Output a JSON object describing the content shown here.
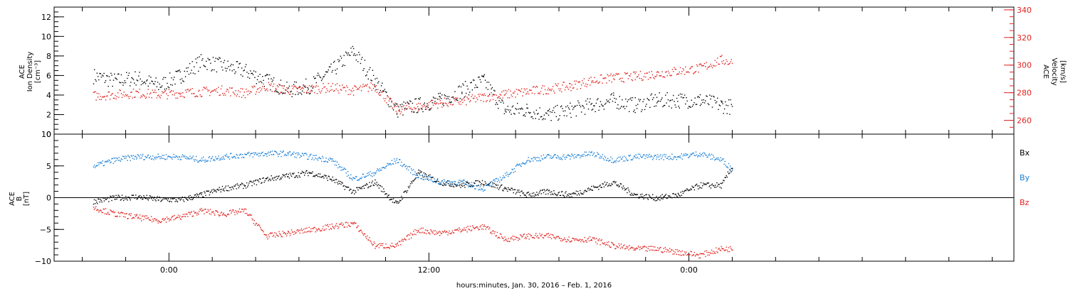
{
  "chart_data": [
    {
      "type": "scatter",
      "panel": "plasma",
      "ylabel_left": [
        "ACE",
        "Ion Density",
        "[cm⁻³]"
      ],
      "ylabel_right": [
        "ACE",
        "Velocity",
        "[km/s]"
      ],
      "ylim_left": [
        0,
        13
      ],
      "yticks_left": [
        0,
        2,
        4,
        6,
        8,
        10,
        12
      ],
      "ylim_right": [
        250,
        342
      ],
      "yticks_right": [
        260,
        280,
        300,
        320,
        340
      ],
      "series": [
        {
          "axis": "left",
          "color": "#000000",
          "x_hours": [
            -3.5,
            -2.5,
            -1.5,
            -0.5,
            0.5,
            1.5,
            2.5,
            3.5,
            4.5,
            5.5,
            6.5,
            7.5,
            8.5,
            9.5,
            10.5,
            11.5,
            12.5,
            13.5,
            14.5,
            15.5,
            16.5,
            17.5,
            18.5,
            19.5,
            20.5,
            21.5,
            22.5,
            23.5,
            24.5,
            25.5,
            26.0
          ],
          "values": [
            6.0,
            5.5,
            5.8,
            5.0,
            6.0,
            7.5,
            7.0,
            6.5,
            5.5,
            4.5,
            5.0,
            6.5,
            8.5,
            5.5,
            2.5,
            3.0,
            3.5,
            4.5,
            5.5,
            2.5,
            2.5,
            2.0,
            2.5,
            3.0,
            3.5,
            3.0,
            3.5,
            3.5,
            3.5,
            3.0,
            2.8
          ]
        },
        {
          "axis": "right",
          "color": "#e0231f",
          "x_hours": [
            -3.5,
            -2.5,
            -1.5,
            -0.5,
            0.5,
            1.5,
            2.5,
            3.5,
            4.5,
            5.5,
            6.5,
            7.5,
            8.5,
            9.5,
            10.5,
            11.5,
            12.5,
            13.5,
            14.5,
            15.5,
            16.5,
            17.5,
            18.5,
            19.5,
            20.5,
            21.5,
            22.5,
            23.5,
            24.5,
            25.5,
            26.0
          ],
          "values": [
            278,
            279,
            280,
            279,
            280,
            281,
            282,
            280,
            285,
            282,
            283,
            284,
            282,
            285,
            268,
            270,
            273,
            274,
            277,
            279,
            281,
            283,
            285,
            289,
            291,
            292,
            294,
            296,
            298,
            304,
            302
          ]
        }
      ]
    },
    {
      "type": "scatter",
      "panel": "magnetic-field",
      "ylabel": [
        "ACE",
        "B",
        "[nT]"
      ],
      "ylim": [
        -10,
        10
      ],
      "yticks": [
        -10,
        -5,
        0,
        5,
        10
      ],
      "zero_line": true,
      "series": [
        {
          "name": "Bx",
          "color": "#000000",
          "x_hours": [
            -3.5,
            -2.5,
            -1.5,
            -0.5,
            0.5,
            1.5,
            2.5,
            3.5,
            4.5,
            5.5,
            6.5,
            7.5,
            8.5,
            9.5,
            10.5,
            11.5,
            12.5,
            13.5,
            14.5,
            15.5,
            16.5,
            17.5,
            18.5,
            19.5,
            20.5,
            21.5,
            22.5,
            23.5,
            24.5,
            25.5,
            26.0
          ],
          "values": [
            -0.5,
            0,
            0.2,
            -0.2,
            -0.3,
            0.5,
            1.5,
            2.0,
            3.0,
            3.5,
            4.0,
            3.0,
            1.0,
            2.5,
            -1.0,
            4.0,
            2.5,
            2.0,
            2.5,
            1.5,
            0.5,
            1.0,
            0.5,
            1.5,
            2.5,
            0.5,
            0,
            0.5,
            2.0,
            2.0,
            5.0
          ]
        },
        {
          "name": "By",
          "color": "#1a7fd6",
          "x_hours": [
            -3.5,
            -2.5,
            -1.5,
            -0.5,
            0.5,
            1.5,
            2.5,
            3.5,
            4.5,
            5.5,
            6.5,
            7.5,
            8.5,
            9.5,
            10.5,
            11.5,
            12.5,
            13.5,
            14.5,
            15.5,
            16.5,
            17.5,
            18.5,
            19.5,
            20.5,
            21.5,
            22.5,
            23.5,
            24.5,
            25.5,
            26.0
          ],
          "values": [
            5.0,
            6.0,
            6.5,
            6.5,
            6.5,
            6.0,
            6.5,
            6.8,
            7.0,
            7.0,
            6.5,
            6.0,
            3.0,
            4.0,
            6.0,
            3.5,
            2.5,
            2.5,
            1.5,
            3.5,
            6.0,
            6.5,
            6.5,
            7.0,
            6.0,
            6.5,
            6.5,
            6.5,
            7.0,
            6.0,
            4.5
          ]
        },
        {
          "name": "Bz",
          "color": "#e0231f",
          "x_hours": [
            -3.5,
            -2.5,
            -1.5,
            -0.5,
            0.5,
            1.5,
            2.5,
            3.5,
            4.5,
            5.5,
            6.5,
            7.5,
            8.5,
            9.5,
            10.5,
            11.5,
            12.5,
            13.5,
            14.5,
            15.5,
            16.5,
            17.5,
            18.5,
            19.5,
            20.5,
            21.5,
            22.5,
            23.5,
            24.5,
            25.5,
            26.0
          ],
          "values": [
            -1.5,
            -2.5,
            -3.0,
            -3.5,
            -3.0,
            -2.0,
            -2.5,
            -2.0,
            -6.0,
            -5.5,
            -5.0,
            -4.5,
            -4.0,
            -7.5,
            -7.5,
            -5.0,
            -5.5,
            -5.0,
            -4.5,
            -6.5,
            -6.0,
            -6.0,
            -6.5,
            -6.5,
            -7.5,
            -8.0,
            -8.0,
            -8.5,
            -9.0,
            -8.0,
            -8.0
          ]
        }
      ]
    }
  ],
  "x_axis": {
    "xlim_hours": [
      -5.3,
      39.0
    ],
    "major_ticks": [
      0,
      12,
      24
    ],
    "tick_labels": [
      "0:00",
      "12:00",
      "0:00"
    ],
    "minor_tick_step_hours": 2,
    "label": "hours:minutes, Jan. 30, 2016 – Feb.  1, 2016"
  }
}
